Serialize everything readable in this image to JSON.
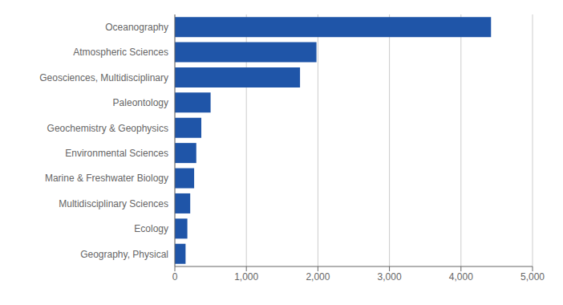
{
  "chart_data": {
    "type": "bar",
    "orientation": "horizontal",
    "categories": [
      "Geography, Physical",
      "Ecology",
      "Multidisciplinary Sciences",
      "Marine & Freshwater Biology",
      "Environmental Sciences",
      "Geochemistry & Geophysics",
      "Paleontology",
      "Geosciences, Multidisciplinary",
      "Atmospheric Sciences",
      "Oceanography"
    ],
    "values": [
      150,
      175,
      215,
      270,
      300,
      370,
      500,
      1750,
      1980,
      4420
    ],
    "color": "#1f55a8",
    "xlim": [
      0,
      5000
    ],
    "xticks": [
      0,
      {
        "value": 1000,
        "label": "1,000"
      },
      {
        "value": 2000,
        "label": "2,000"
      },
      {
        "value": 3000,
        "label": "3,000"
      },
      {
        "value": 4000,
        "label": "4,000"
      },
      {
        "value": 5000,
        "label": "5,000"
      }
    ],
    "grid": true
  }
}
